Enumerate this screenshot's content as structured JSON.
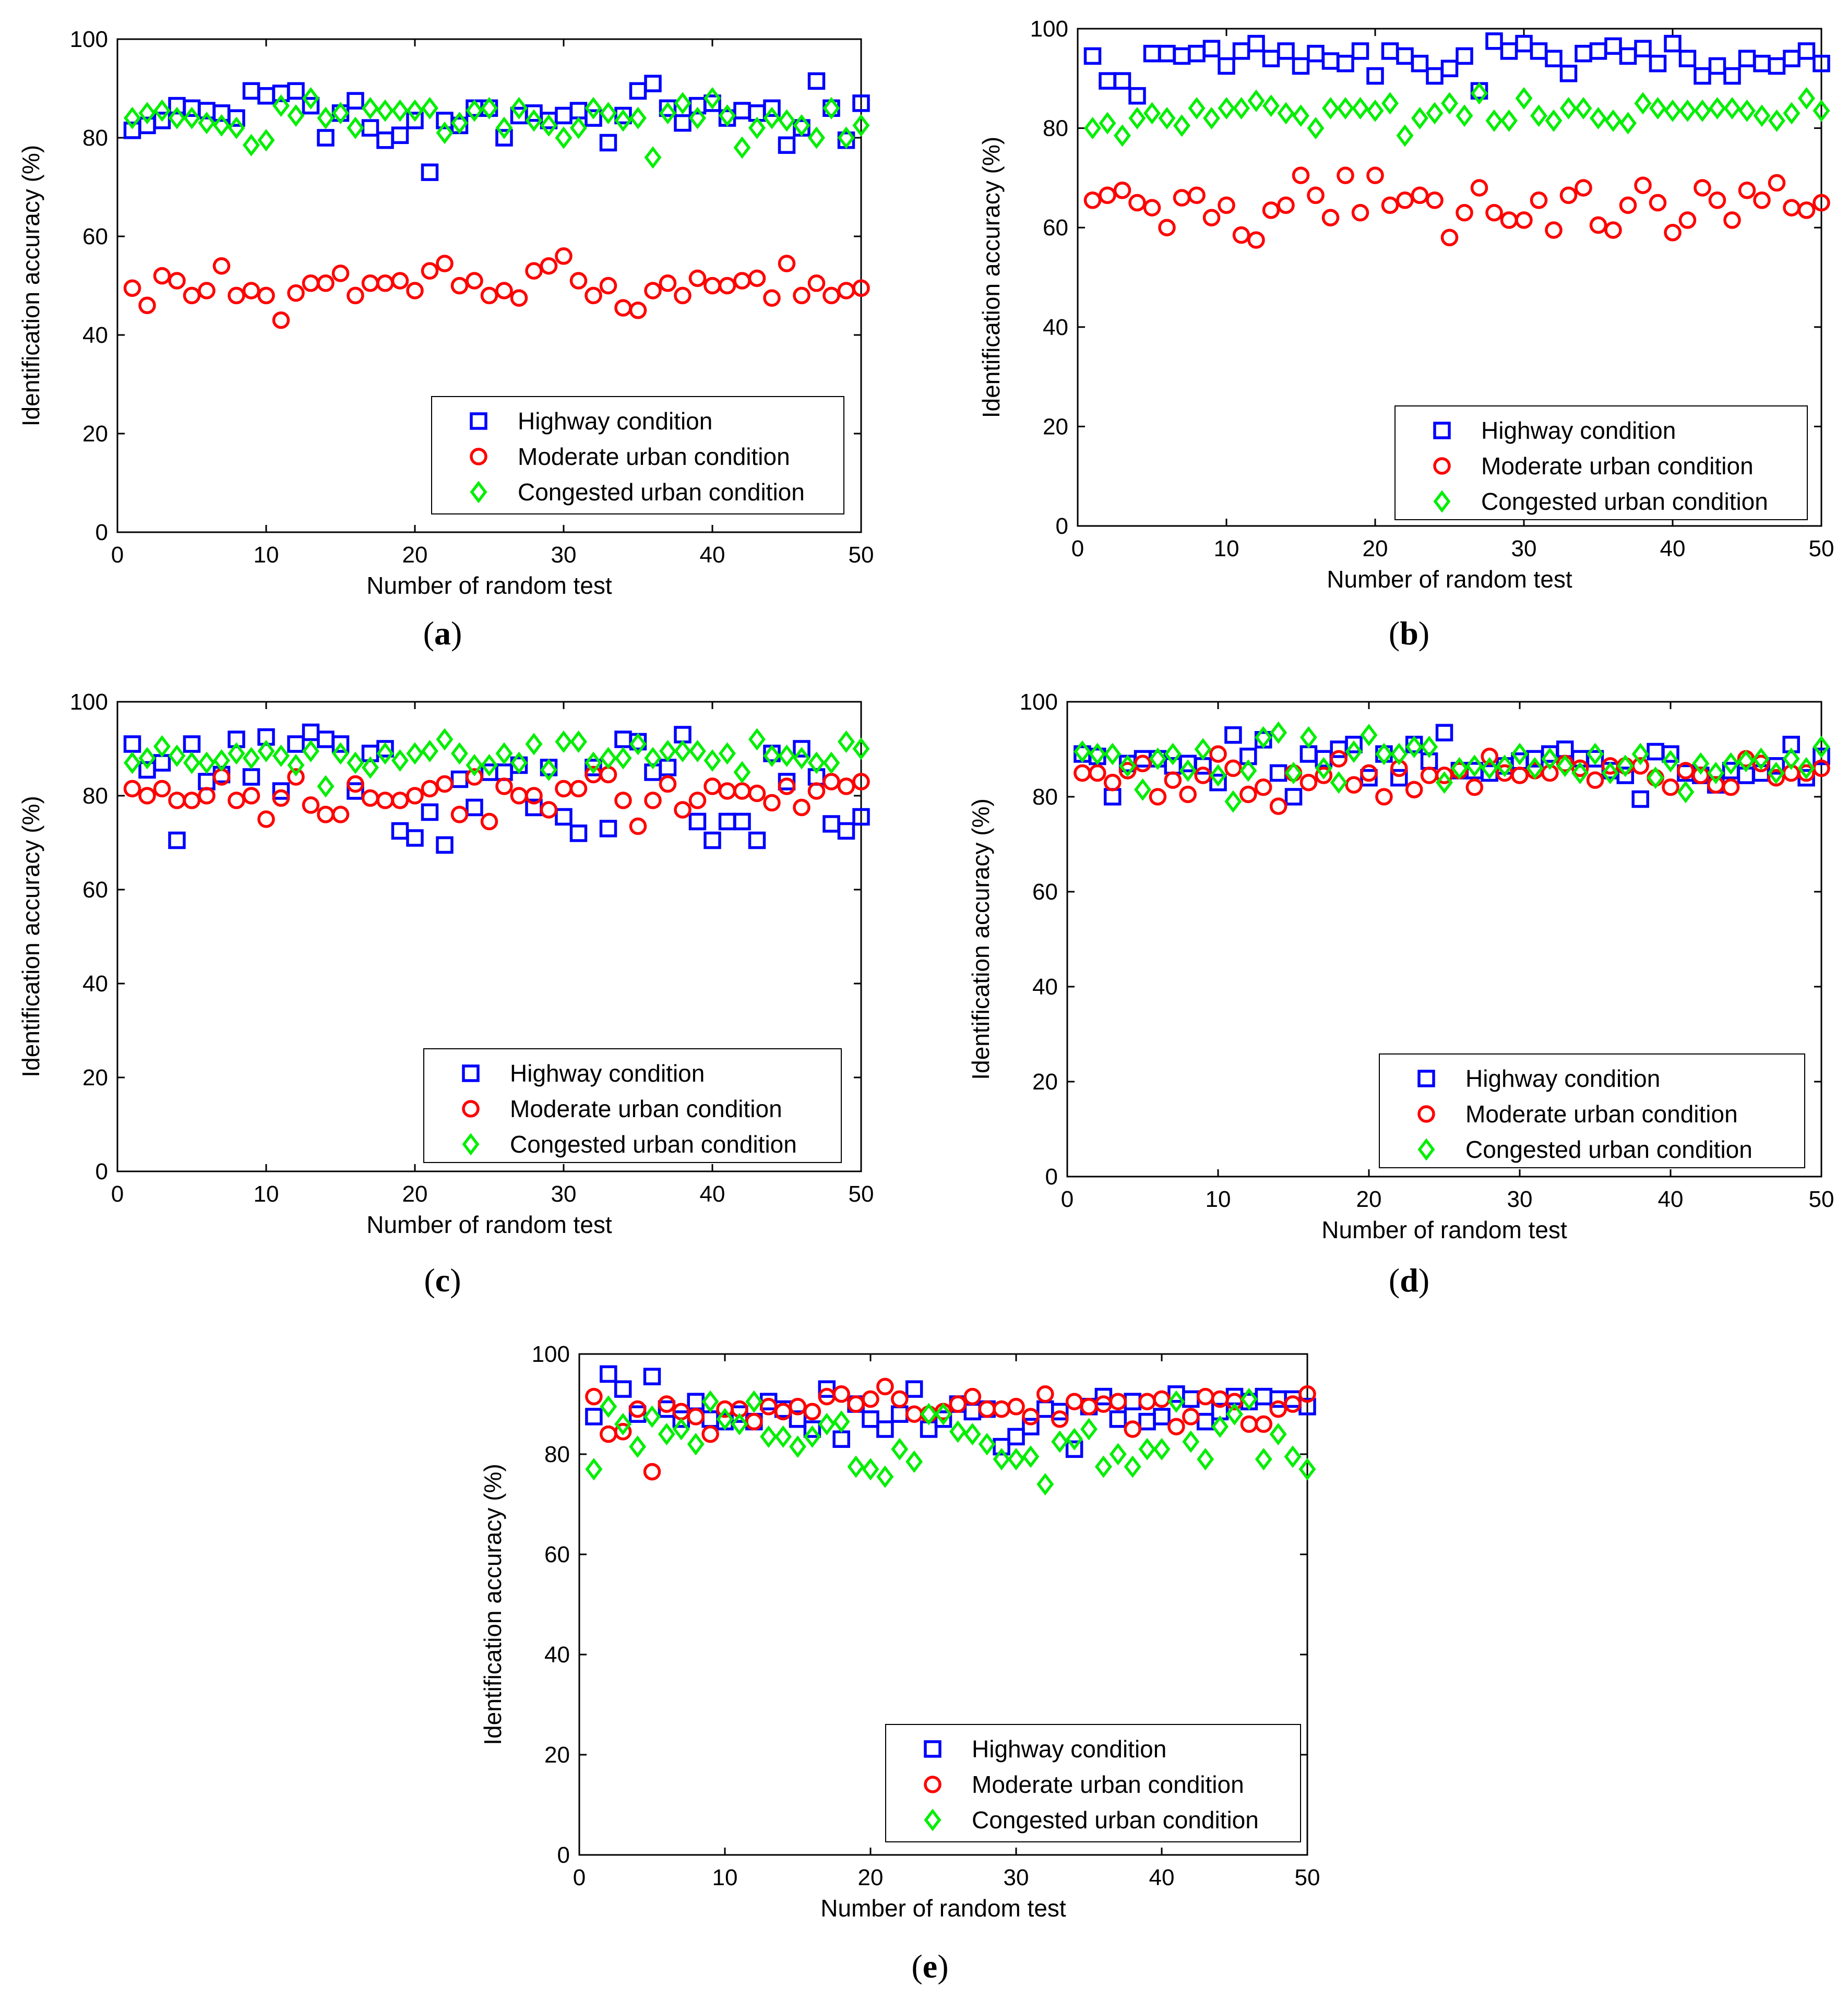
{
  "chart_data": [
    {
      "panel": "(a)",
      "type": "scatter",
      "xlabel": "Number of random test",
      "ylabel": "Identification accuracy (%)",
      "xlim": [
        0,
        50
      ],
      "ylim": [
        0,
        100
      ],
      "xticks": [
        0,
        10,
        20,
        30,
        40,
        50
      ],
      "yticks": [
        0,
        20,
        40,
        60,
        80,
        100
      ],
      "legend_position": "bottom-right",
      "series": [
        {
          "name": "Highway condition",
          "marker": "square",
          "color": "#0000ff",
          "values": [
            81.5,
            82.5,
            83.5,
            86.5,
            86,
            85.5,
            85,
            84,
            89.5,
            88.5,
            89,
            89.5,
            86.5,
            80,
            85,
            87.5,
            82,
            79.5,
            80.5,
            83.5,
            73,
            83.5,
            82.5,
            86,
            86,
            80,
            84.5,
            85,
            83.5,
            84.5,
            85.5,
            84,
            79,
            84.5,
            89.5,
            91,
            86,
            83,
            86.5,
            87,
            84,
            85.5,
            85,
            86,
            78.5,
            82,
            91.5,
            86,
            79.5,
            87
          ]
        },
        {
          "name": "Moderate urban condition",
          "marker": "circle",
          "color": "#ff0000",
          "values": [
            49.5,
            46,
            52,
            51,
            48,
            49,
            54,
            48,
            49,
            48,
            43,
            48.5,
            50.5,
            50.5,
            52.5,
            48,
            50.5,
            50.5,
            51,
            49,
            53,
            54.5,
            50,
            51,
            48,
            49,
            47.5,
            53,
            54,
            56,
            51,
            48,
            50,
            45.5,
            45,
            49,
            50.5,
            48,
            51.5,
            50,
            50,
            51,
            51.5,
            47.5,
            54.5,
            48,
            50.5,
            48,
            49,
            49.5
          ]
        },
        {
          "name": "Congested urban condition",
          "marker": "diamond",
          "color": "#00ee00",
          "values": [
            84,
            85,
            85.5,
            84,
            84,
            83,
            82.5,
            82,
            78.5,
            79.5,
            86.5,
            84.5,
            88,
            84,
            85,
            82,
            86,
            85.5,
            85.5,
            85.5,
            86,
            81,
            83,
            85.5,
            86,
            82,
            86,
            83.5,
            82.5,
            80,
            82,
            86,
            85,
            83.5,
            84,
            76,
            85,
            87,
            84,
            88,
            84.5,
            78,
            82,
            84,
            83.5,
            82.5,
            80,
            86,
            80,
            82.5
          ]
        }
      ]
    },
    {
      "panel": "(b)",
      "type": "scatter",
      "xlabel": "Number of random test",
      "ylabel": "Identification accuracy (%)",
      "xlim": [
        0,
        50
      ],
      "ylim": [
        0,
        100
      ],
      "xticks": [
        0,
        10,
        20,
        30,
        40,
        50
      ],
      "yticks": [
        0,
        20,
        40,
        60,
        80,
        100
      ],
      "legend_position": "bottom-right",
      "series": [
        {
          "name": "Highway condition",
          "marker": "square",
          "color": "#0000ff",
          "values": [
            94.5,
            89.5,
            89.5,
            86.5,
            95,
            95,
            94.5,
            95,
            96,
            92.5,
            95.5,
            97,
            94,
            95.5,
            92.5,
            95,
            93.5,
            93,
            95.5,
            90.5,
            95.5,
            94.5,
            93,
            90.5,
            92,
            94.5,
            87.5,
            97.5,
            95.5,
            97,
            95.5,
            94,
            91,
            95,
            95.5,
            96.5,
            94.5,
            96,
            93,
            97,
            94,
            90.5,
            92.5,
            90.5,
            94,
            93,
            92.5,
            94,
            95.5,
            93
          ]
        },
        {
          "name": "Moderate urban condition",
          "marker": "circle",
          "color": "#ff0000",
          "values": [
            65.5,
            66.5,
            67.5,
            65,
            64,
            60,
            66,
            66.5,
            62,
            64.5,
            58.5,
            57.5,
            63.5,
            64.5,
            70.5,
            66.5,
            62,
            70.5,
            63,
            70.5,
            64.5,
            65.5,
            66.5,
            65.5,
            58,
            63,
            68,
            63,
            61.5,
            61.5,
            65.5,
            59.5,
            66.5,
            68,
            60.5,
            59.5,
            64.5,
            68.5,
            65,
            59,
            61.5,
            68,
            65.5,
            61.5,
            67.5,
            65.5,
            69,
            64,
            63.5,
            65
          ]
        },
        {
          "name": "Congested urban condition",
          "marker": "diamond",
          "color": "#00ee00",
          "values": [
            80,
            81,
            78.5,
            82,
            83,
            82,
            80.5,
            84,
            82,
            84,
            84,
            85.5,
            84.5,
            83,
            82.5,
            80,
            84,
            84,
            84,
            83.5,
            85,
            78.5,
            82,
            83,
            85,
            82.5,
            87,
            81.5,
            81.5,
            86,
            82.5,
            81.5,
            84,
            84,
            82,
            81.5,
            81,
            85,
            84,
            83.5,
            83.5,
            83.5,
            84,
            84,
            83.5,
            82.5,
            81.5,
            83,
            86,
            83.5
          ]
        }
      ]
    },
    {
      "panel": "(c)",
      "type": "scatter",
      "xlabel": "Number of random test",
      "ylabel": "Identification accuracy (%)",
      "xlim": [
        0,
        50
      ],
      "ylim": [
        0,
        100
      ],
      "xticks": [
        0,
        10,
        20,
        30,
        40,
        50
      ],
      "yticks": [
        0,
        20,
        40,
        60,
        80,
        100
      ],
      "legend_position": "bottom-right",
      "series": [
        {
          "name": "Highway condition",
          "marker": "square",
          "color": "#0000ff",
          "values": [
            91,
            85.5,
            87,
            70.5,
            91,
            83,
            84.5,
            92,
            84,
            92.5,
            81,
            91,
            93.5,
            92,
            91,
            81,
            89,
            90,
            72.5,
            71,
            76.5,
            69.5,
            83.5,
            77.5,
            85,
            85,
            86.5,
            77.5,
            86,
            75.5,
            72,
            86,
            73,
            92,
            91.5,
            85,
            86,
            93,
            74.5,
            70.5,
            74.5,
            74.5,
            70.5,
            89,
            83,
            90,
            84,
            74,
            72.5,
            75.5
          ]
        },
        {
          "name": "Moderate urban condition",
          "marker": "circle",
          "color": "#ff0000",
          "values": [
            81.5,
            80,
            81.5,
            79,
            79,
            80,
            84,
            79,
            80,
            75,
            79.5,
            84,
            78,
            76,
            76,
            82.5,
            79.5,
            79,
            79,
            80,
            81.5,
            82.5,
            76,
            84,
            74.5,
            82,
            80,
            80,
            77,
            81.5,
            81.5,
            84.5,
            84.5,
            79,
            73.5,
            79,
            82.5,
            77,
            79,
            82,
            81,
            81,
            80.5,
            78.5,
            82,
            77.5,
            81,
            83,
            82,
            83
          ]
        },
        {
          "name": "Congested urban condition",
          "marker": "diamond",
          "color": "#00ee00",
          "values": [
            87,
            88,
            90.5,
            88.5,
            87,
            87,
            87.5,
            89,
            88,
            89.5,
            88.5,
            86.5,
            89.5,
            82,
            89,
            87,
            86,
            89,
            87.5,
            89,
            89.5,
            92,
            89,
            86.5,
            86.5,
            89,
            87,
            91,
            85.5,
            91.5,
            91.5,
            87,
            88,
            88,
            91,
            88,
            89.5,
            89.5,
            89.5,
            87.5,
            89,
            85,
            92,
            88.5,
            88.5,
            88,
            87,
            87,
            91.5,
            90
          ]
        }
      ]
    },
    {
      "panel": "(d)",
      "type": "scatter",
      "xlabel": "Number of random test",
      "ylabel": "Identification accuracy (%)",
      "xlim": [
        0,
        50
      ],
      "ylim": [
        0,
        100
      ],
      "xticks": [
        0,
        10,
        20,
        30,
        40,
        50
      ],
      "yticks": [
        0,
        20,
        40,
        60,
        80,
        100
      ],
      "legend_position": "bottom-right",
      "series": [
        {
          "name": "Highway condition",
          "marker": "square",
          "color": "#0000ff",
          "values": [
            89,
            88.5,
            80,
            87,
            88,
            88,
            86.5,
            87,
            86.5,
            83,
            93,
            88.5,
            92,
            85,
            80,
            89,
            88,
            90,
            91,
            84,
            89,
            84,
            91,
            87.5,
            93.5,
            85.5,
            85.5,
            85,
            86.5,
            87.5,
            88,
            89,
            90,
            88,
            88,
            85.5,
            84.5,
            79.5,
            89.5,
            89,
            85,
            84.5,
            82.5,
            85.5,
            84.5,
            85,
            86.5,
            91,
            84,
            88.5
          ]
        },
        {
          "name": "Moderate urban condition",
          "marker": "circle",
          "color": "#ff0000",
          "values": [
            85,
            85,
            83,
            85.5,
            87,
            80,
            83.5,
            80.5,
            84.5,
            89,
            86,
            80.5,
            82,
            78,
            85,
            83,
            84.5,
            88,
            82.5,
            85,
            80,
            86,
            81.5,
            84.5,
            84.5,
            85.5,
            82,
            88.5,
            85,
            84.5,
            85.5,
            85,
            87,
            86,
            83.5,
            86.5,
            86.5,
            86.5,
            84,
            82,
            85.5,
            84.5,
            82.5,
            82,
            88,
            87,
            84,
            85,
            85,
            86
          ]
        },
        {
          "name": "Congested urban condition",
          "marker": "diamond",
          "color": "#00ee00",
          "values": [
            89.5,
            89,
            89,
            86.5,
            81.5,
            88,
            89,
            85.5,
            90,
            84.5,
            79,
            85.5,
            92.5,
            93.5,
            85,
            92.5,
            86,
            83,
            89.5,
            93,
            89,
            89,
            90.5,
            90.5,
            83,
            86,
            86.5,
            86,
            86.5,
            89,
            86,
            88,
            86.5,
            85,
            89,
            85,
            86.5,
            89,
            84,
            87.5,
            81,
            87,
            85,
            87,
            87.5,
            88,
            85,
            88,
            86,
            90.5
          ]
        }
      ]
    },
    {
      "panel": "(e)",
      "type": "scatter",
      "xlabel": "Number of random test",
      "ylabel": "Identification accuracy (%)",
      "xlim": [
        0,
        50
      ],
      "ylim": [
        0,
        100
      ],
      "xticks": [
        0,
        10,
        20,
        30,
        40,
        50
      ],
      "yticks": [
        0,
        20,
        40,
        60,
        80,
        100
      ],
      "legend_position": "bottom-right",
      "series": [
        {
          "name": "Highway condition",
          "marker": "square",
          "color": "#0000ff",
          "values": [
            87.5,
            96,
            93,
            88,
            95.5,
            89,
            87,
            90.5,
            87,
            86.5,
            88,
            86.5,
            90.5,
            89,
            87,
            85,
            93,
            83,
            90,
            87,
            85,
            88,
            93,
            85,
            87,
            90,
            88.5,
            89,
            81.5,
            83.5,
            85.5,
            89,
            88.5,
            81,
            89.5,
            91.5,
            87,
            90.5,
            86.5,
            87.5,
            92,
            91,
            86.5,
            88.5,
            91.5,
            90.5,
            91.5,
            91,
            91,
            89.5
          ]
        },
        {
          "name": "Moderate urban condition",
          "marker": "circle",
          "color": "#ff0000",
          "values": [
            91.5,
            84,
            84.5,
            89,
            76.5,
            90,
            88.5,
            87.5,
            84,
            89,
            89,
            86.5,
            89.5,
            88.5,
            89.5,
            88.5,
            91.5,
            92,
            90,
            91,
            93.5,
            91,
            88,
            88,
            88.5,
            90,
            91.5,
            89,
            89,
            89.5,
            87.5,
            92,
            87,
            90.5,
            89.5,
            90,
            90.5,
            85,
            90.5,
            91,
            85.5,
            87.5,
            91.5,
            91,
            90.5,
            86,
            86,
            89,
            90,
            92
          ]
        },
        {
          "name": "Congested urban condition",
          "marker": "diamond",
          "color": "#00ee00",
          "values": [
            77,
            89.5,
            86,
            81.5,
            87.5,
            84,
            85,
            82,
            90.5,
            87,
            86,
            90.5,
            83.5,
            83.5,
            81.5,
            83.5,
            86,
            86.5,
            77.5,
            77,
            75.5,
            81,
            78.5,
            88,
            88,
            84.5,
            84,
            82,
            79,
            79,
            79.5,
            74,
            82.5,
            83,
            85,
            77.5,
            80,
            77.5,
            81,
            81,
            90.5,
            82.5,
            79,
            85.5,
            88,
            91,
            79,
            84,
            79.5,
            77
          ]
        }
      ]
    }
  ]
}
